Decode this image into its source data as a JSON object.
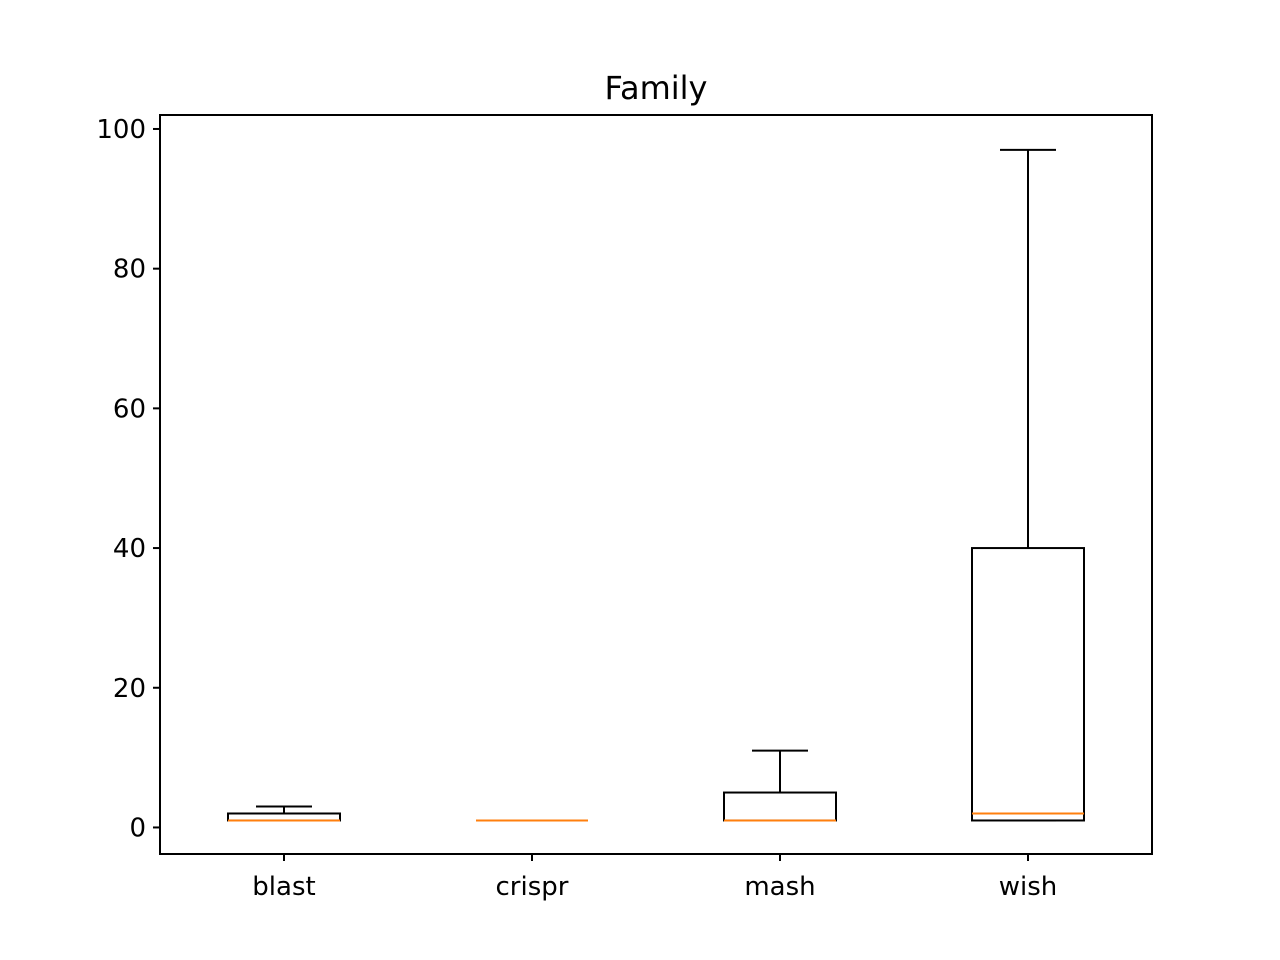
{
  "chart_data": {
    "type": "boxplot",
    "title": "Family",
    "xlabel": "",
    "ylabel": "",
    "categories": [
      "blast",
      "crispr",
      "mash",
      "wish"
    ],
    "boxes": [
      {
        "name": "blast",
        "whislo": 1,
        "q1": 1,
        "median": 1,
        "q3": 2,
        "whishi": 3
      },
      {
        "name": "crispr",
        "whislo": 1,
        "q1": 1,
        "median": 1,
        "q3": 1,
        "whishi": 1
      },
      {
        "name": "mash",
        "whislo": 1,
        "q1": 1,
        "median": 1,
        "q3": 5,
        "whishi": 11
      },
      {
        "name": "wish",
        "whislo": 1,
        "q1": 1,
        "median": 2,
        "q3": 40,
        "whishi": 97
      }
    ],
    "ylim": [
      -3.8,
      102
    ],
    "yticks": [
      "0",
      "20",
      "40",
      "60",
      "80",
      "100"
    ],
    "grid": false,
    "legend": "none",
    "colors": {
      "box": "#000000",
      "median": "#ff7f0e",
      "axes": "#000000",
      "background": "#ffffff"
    }
  }
}
